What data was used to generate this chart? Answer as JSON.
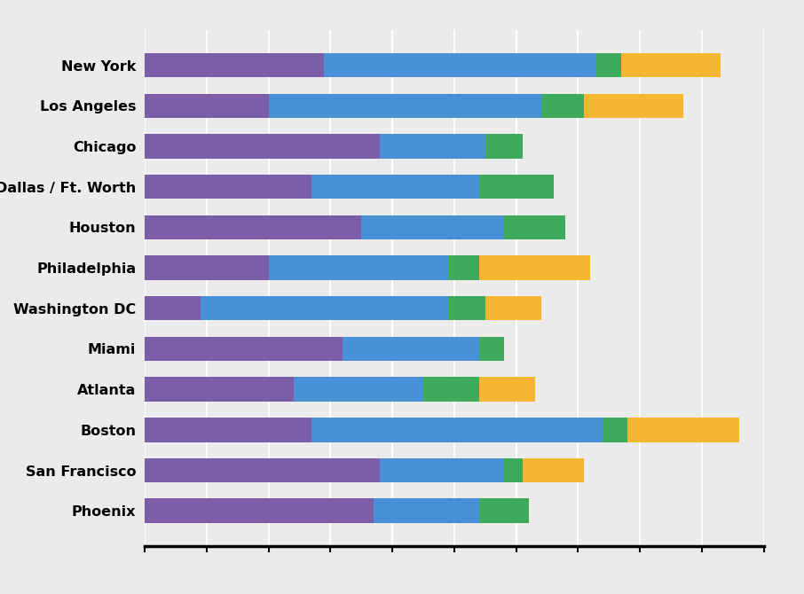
{
  "cities": [
    "New York",
    "Los Angeles",
    "Chicago",
    "Dallas / Ft. Worth",
    "Houston",
    "Philadelphia",
    "Washington DC",
    "Miami",
    "Atlanta",
    "Boston",
    "San Francisco",
    "Phoenix"
  ],
  "segments": {
    "purple": [
      29,
      20,
      38,
      27,
      35,
      20,
      9,
      32,
      24,
      27,
      38,
      37
    ],
    "blue": [
      44,
      44,
      17,
      27,
      23,
      29,
      40,
      22,
      21,
      47,
      20,
      17
    ],
    "green": [
      4,
      7,
      6,
      12,
      10,
      5,
      6,
      4,
      9,
      4,
      3,
      8
    ],
    "gold": [
      16,
      16,
      0,
      0,
      0,
      18,
      9,
      0,
      9,
      18,
      10,
      0
    ]
  },
  "colors": {
    "purple": "#7B5EA7",
    "blue": "#4A90D9",
    "green": "#3DAA5C",
    "gold": "#F5B731"
  },
  "background_color": "#EBEBEB",
  "bar_height": 0.6,
  "xlim": [
    0,
    100
  ],
  "xtick_count": 11,
  "label_fontsize": 11.5
}
